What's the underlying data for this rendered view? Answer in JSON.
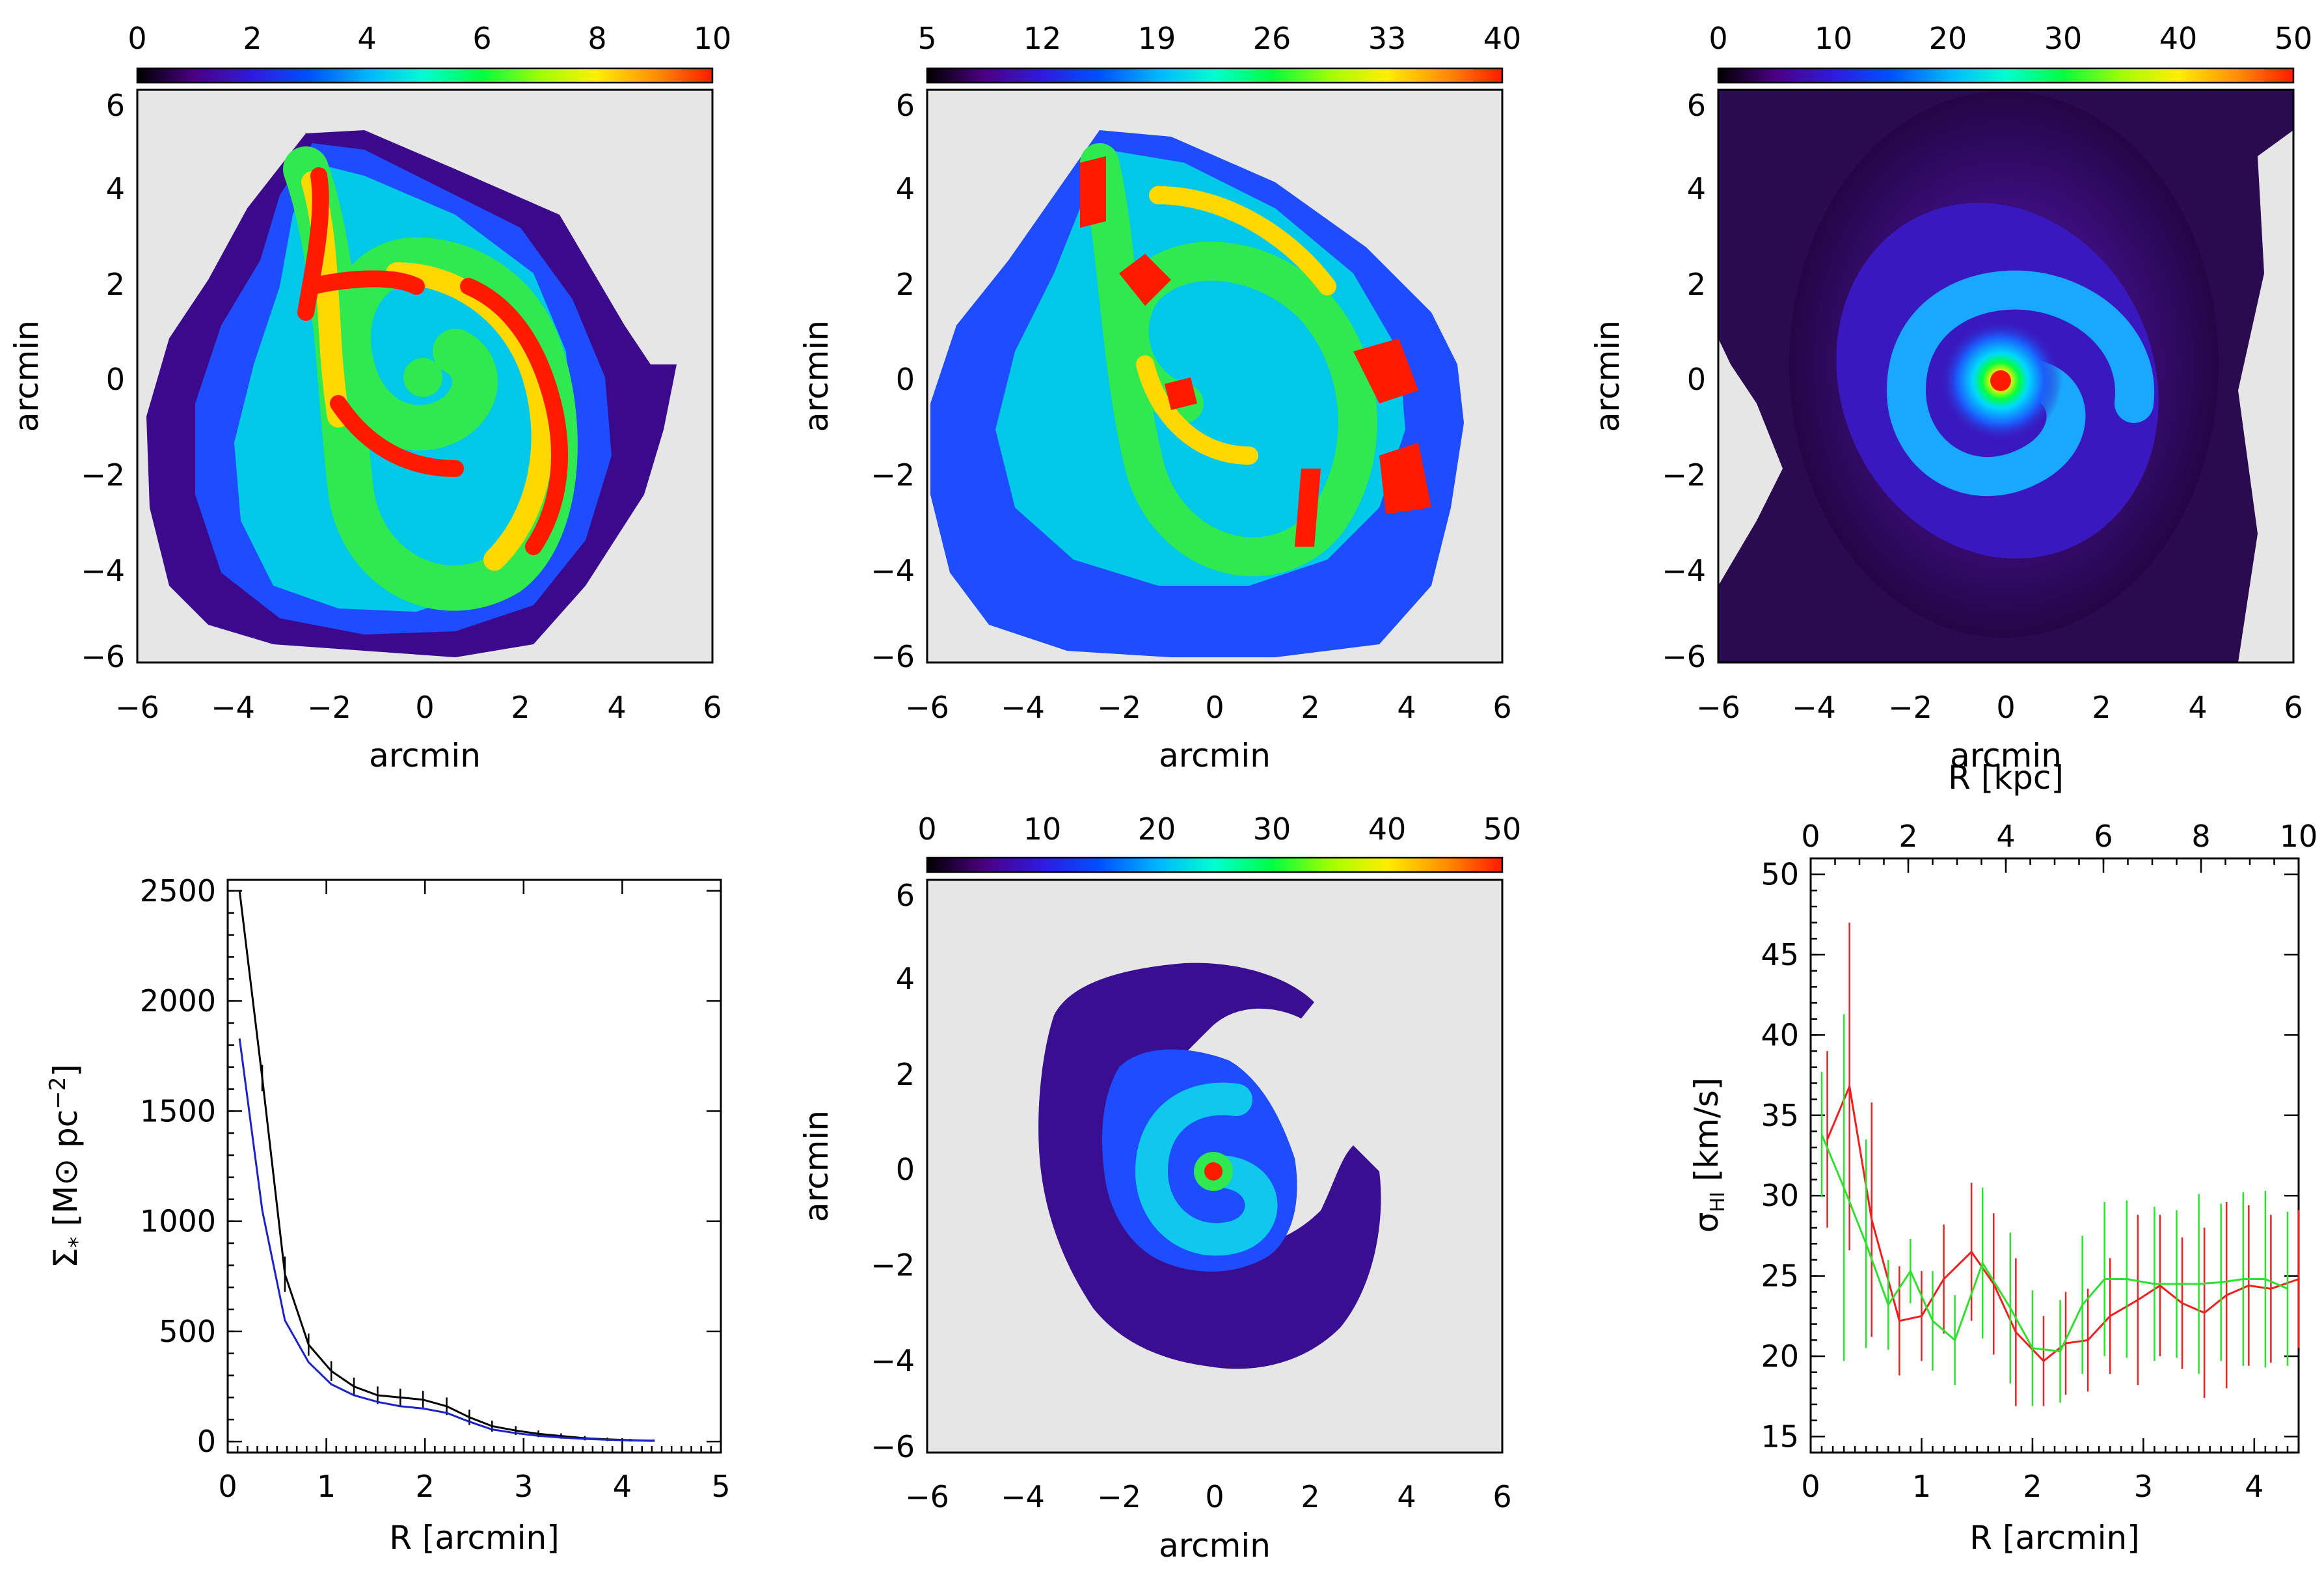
{
  "colors": {
    "map_background": "#e6e6e6",
    "rainbow_scale": [
      "#000000",
      "#4b0082",
      "#2f1ae0",
      "#0050ff",
      "#00b4ff",
      "#00ffd0",
      "#00ff40",
      "#a0ff00",
      "#ffee00",
      "#ff9000",
      "#ff1a00"
    ],
    "profile_total": "#000000",
    "profile_blue": "#1c22c8",
    "dispersion_red": "#ee2020",
    "dispersion_green": "#30e030"
  },
  "panels": {
    "top_left": {
      "colorbar": {
        "ticks": [
          "0",
          "2",
          "4",
          "6",
          "8",
          "10"
        ]
      },
      "xlabel": "arcmin",
      "ylabel": "arcmin",
      "xticks": [
        "−6",
        "−4",
        "−2",
        "0",
        "2",
        "4",
        "6"
      ],
      "yticks": [
        "6",
        "4",
        "2",
        "0",
        "−2",
        "−4",
        "−6"
      ]
    },
    "top_middle": {
      "colorbar": {
        "ticks": [
          "5",
          "12",
          "19",
          "26",
          "33",
          "40"
        ]
      },
      "xlabel": "arcmin",
      "ylabel": "arcmin",
      "xticks": [
        "−6",
        "−4",
        "−2",
        "0",
        "2",
        "4",
        "6"
      ],
      "yticks": [
        "6",
        "4",
        "2",
        "0",
        "−2",
        "−4",
        "−6"
      ]
    },
    "top_right": {
      "colorbar": {
        "ticks": [
          "0",
          "10",
          "20",
          "30",
          "40",
          "50"
        ]
      },
      "xlabel": "arcmin",
      "ylabel": "arcmin",
      "xticks": [
        "−6",
        "−4",
        "−2",
        "0",
        "2",
        "4",
        "6"
      ],
      "yticks": [
        "6",
        "4",
        "2",
        "0",
        "−2",
        "−4",
        "−6"
      ]
    },
    "bottom_middle": {
      "colorbar": {
        "ticks": [
          "0",
          "10",
          "20",
          "30",
          "40",
          "50"
        ]
      },
      "xlabel": "arcmin",
      "ylabel": "arcmin",
      "xticks": [
        "−6",
        "−4",
        "−2",
        "0",
        "2",
        "4",
        "6"
      ],
      "yticks": [
        "6",
        "4",
        "2",
        "0",
        "−2",
        "−4",
        "−6"
      ]
    }
  },
  "chart_data": [
    {
      "type": "heatmap",
      "panel": "top_left",
      "title": "",
      "xlabel": "arcmin",
      "ylabel": "arcmin",
      "xlim": [
        -6,
        6
      ],
      "ylim": [
        -6,
        6
      ],
      "colorbar_range": [
        0,
        10
      ],
      "colorbar_ticks": [
        0,
        2,
        4,
        6,
        8,
        10
      ]
    },
    {
      "type": "heatmap",
      "panel": "top_middle",
      "title": "",
      "xlabel": "arcmin",
      "ylabel": "arcmin",
      "xlim": [
        -6,
        6
      ],
      "ylim": [
        -6,
        6
      ],
      "colorbar_range": [
        5,
        40
      ],
      "colorbar_ticks": [
        5,
        12,
        19,
        26,
        33,
        40
      ]
    },
    {
      "type": "heatmap",
      "panel": "top_right",
      "title": "",
      "xlabel": "arcmin",
      "ylabel": "arcmin",
      "xlim": [
        -6,
        6
      ],
      "ylim": [
        -6,
        6
      ],
      "colorbar_range": [
        0,
        50
      ],
      "colorbar_ticks": [
        0,
        10,
        20,
        30,
        40,
        50
      ]
    },
    {
      "type": "heatmap",
      "panel": "bottom_middle",
      "title": "",
      "xlabel": "arcmin",
      "ylabel": "arcmin",
      "xlim": [
        -6,
        6
      ],
      "ylim": [
        -6,
        6
      ],
      "colorbar_range": [
        0,
        50
      ],
      "colorbar_ticks": [
        0,
        10,
        20,
        30,
        40,
        50
      ]
    },
    {
      "type": "line",
      "panel": "bottom_left",
      "title": "",
      "xlabel": "R [arcmin]",
      "ylabel": "Σ* [M⊙ pc⁻²]",
      "ylabel_parts": {
        "symbol": "Σ",
        "subscript": "*",
        "open": " [M",
        "sun": "⊙",
        "unit": " pc",
        "exponent": "−2",
        "close": "]"
      },
      "xlim": [
        0,
        5
      ],
      "ylim": [
        -50,
        2550
      ],
      "xticks": [
        0,
        1,
        2,
        3,
        4,
        5
      ],
      "yticks": [
        0,
        500,
        1000,
        1500,
        2000,
        2500
      ],
      "xtick_labels": [
        "0",
        "1",
        "2",
        "3",
        "4",
        "5"
      ],
      "ytick_labels": [
        "0",
        "500",
        "1000",
        "1500",
        "2000",
        "2500"
      ],
      "series": [
        {
          "name": "black",
          "x": [
            0.12,
            0.35,
            0.58,
            0.82,
            1.05,
            1.28,
            1.52,
            1.75,
            1.98,
            2.22,
            2.45,
            2.68,
            2.92,
            3.15,
            3.38,
            3.62,
            3.85,
            4.08,
            4.32
          ],
          "values": [
            2500,
            1650,
            760,
            440,
            320,
            250,
            210,
            200,
            190,
            160,
            110,
            70,
            50,
            35,
            25,
            15,
            10,
            6,
            4
          ],
          "errors": [
            0,
            60,
            80,
            50,
            45,
            40,
            40,
            40,
            40,
            40,
            35,
            25,
            20,
            15,
            12,
            10,
            8,
            6,
            5
          ]
        },
        {
          "name": "blue",
          "x": [
            0.12,
            0.35,
            0.58,
            0.82,
            1.05,
            1.28,
            1.52,
            1.75,
            1.98,
            2.22,
            2.45,
            2.68,
            2.92,
            3.15,
            3.38,
            3.62,
            3.85,
            4.08,
            4.32
          ],
          "values": [
            1830,
            1050,
            550,
            360,
            260,
            210,
            180,
            160,
            150,
            130,
            90,
            55,
            38,
            26,
            18,
            12,
            8,
            5,
            3
          ]
        }
      ]
    },
    {
      "type": "line",
      "panel": "bottom_right",
      "title": "",
      "xlabel": "R [arcmin]",
      "ylabel": "σHI [km/s]",
      "ylabel_parts": {
        "symbol": "σ",
        "subscript": "HI",
        "unit": " [km/s]"
      },
      "x2label": "R [kpc]",
      "xlim": [
        0,
        4.4
      ],
      "ylim": [
        14,
        51
      ],
      "xticks": [
        0,
        1,
        2,
        3,
        4
      ],
      "yticks": [
        15,
        20,
        25,
        30,
        35,
        40,
        45,
        50
      ],
      "xtick_labels": [
        "0",
        "1",
        "2",
        "3",
        "4"
      ],
      "ytick_labels": [
        "15",
        "20",
        "25",
        "30",
        "35",
        "40",
        "45",
        "50"
      ],
      "x2lim": [
        0,
        10
      ],
      "x2ticks": [
        0,
        2,
        4,
        6,
        8,
        10
      ],
      "x2tick_labels": [
        "0",
        "2",
        "4",
        "6",
        "8",
        "10"
      ],
      "series": [
        {
          "name": "red",
          "x": [
            0.15,
            0.35,
            0.55,
            0.8,
            1.0,
            1.2,
            1.45,
            1.65,
            1.85,
            2.1,
            2.3,
            2.5,
            2.7,
            2.95,
            3.15,
            3.35,
            3.55,
            3.75,
            3.95,
            4.15,
            4.4
          ],
          "values": [
            33.5,
            36.8,
            28.5,
            22.2,
            22.5,
            24.8,
            26.5,
            24.5,
            21.5,
            19.7,
            20.8,
            21.0,
            22.5,
            23.5,
            24.4,
            23.3,
            22.7,
            23.8,
            24.4,
            24.2,
            24.8
          ],
          "errors": [
            5.5,
            10.2,
            7.3,
            3.4,
            2.8,
            3.4,
            4.3,
            4.4,
            4.6,
            2.8,
            3.2,
            3.2,
            3.6,
            5.3,
            4.4,
            4.1,
            5.3,
            5.8,
            5.0,
            4.6,
            4.3
          ]
        },
        {
          "name": "green",
          "x": [
            0.1,
            0.3,
            0.5,
            0.7,
            0.9,
            1.1,
            1.3,
            1.55,
            1.8,
            2.0,
            2.25,
            2.45,
            2.65,
            2.85,
            3.1,
            3.3,
            3.5,
            3.7,
            3.9,
            4.1,
            4.3
          ],
          "values": [
            33.8,
            30.5,
            27.0,
            23.2,
            25.3,
            22.2,
            21.0,
            25.8,
            23.0,
            20.5,
            20.3,
            23.2,
            24.8,
            24.8,
            24.5,
            24.5,
            24.5,
            24.6,
            24.8,
            24.8,
            24.2
          ],
          "errors": [
            3.9,
            10.8,
            6.5,
            2.8,
            2.0,
            3.1,
            2.8,
            4.7,
            4.7,
            3.6,
            3.2,
            4.3,
            4.8,
            4.9,
            4.8,
            4.6,
            5.6,
            4.9,
            5.4,
            5.5,
            4.8
          ]
        }
      ]
    }
  ]
}
